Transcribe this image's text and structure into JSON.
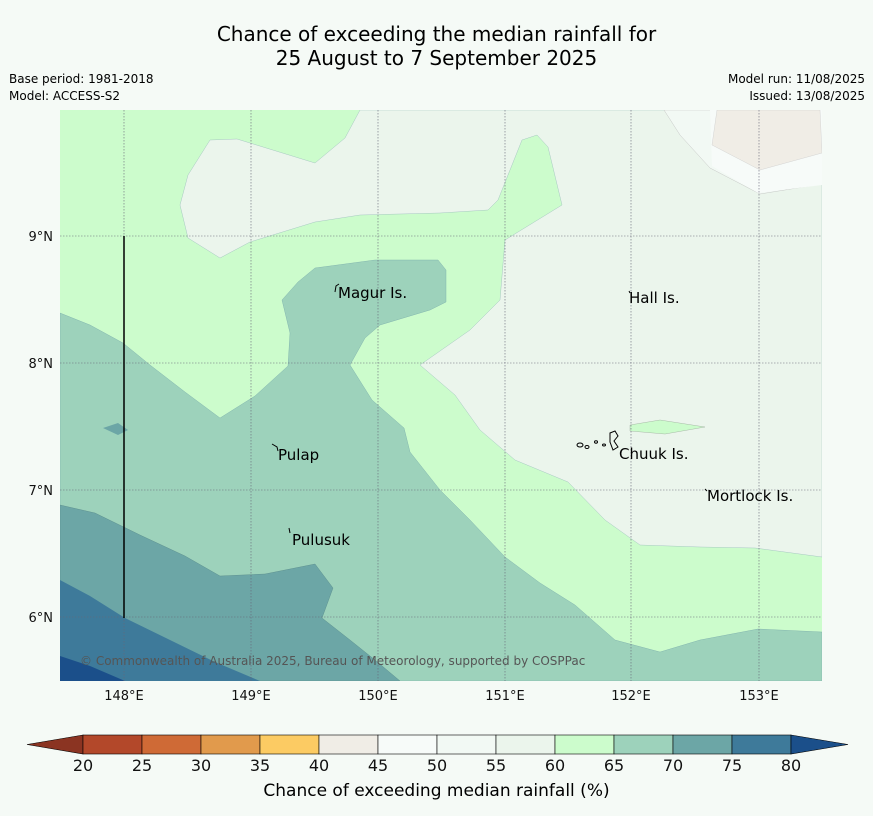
{
  "title": {
    "line1": "Chance of exceeding the median rainfall for",
    "line2": "25 August to 7 September 2025"
  },
  "meta_left": {
    "base_period": "Base period: 1981-2018",
    "model": "Model: ACCESS-S2"
  },
  "meta_right": {
    "model_run": "Model run: 11/08/2025",
    "issued": "Issued: 13/08/2025"
  },
  "map": {
    "lon_ticks": [
      "148°E",
      "149°E",
      "150°E",
      "151°E",
      "152°E",
      "153°E"
    ],
    "lat_ticks": [
      "9°N",
      "8°N",
      "7°N",
      "6°N"
    ],
    "places": [
      "Magur Is.",
      "Hall Is.",
      "Pulap",
      "Chuuk Is.",
      "Mortlock Is.",
      "Pulusuk"
    ],
    "copyright": "© Commonwealth of Australia 2025, Bureau of Meteorology, supported by COSPPac"
  },
  "colorbar": {
    "title": "Chance of exceeding median rainfall (%)",
    "labels": [
      "20",
      "25",
      "30",
      "35",
      "40",
      "45",
      "50",
      "55",
      "60",
      "65",
      "70",
      "75",
      "80"
    ],
    "colors": [
      "#b3482a",
      "#cf6a36",
      "#e19a4c",
      "#fccb63",
      "#f0ede6",
      "#f7fbf9",
      "#f2f9f4",
      "#ebf5ec",
      "#ccfccc",
      "#9dd2bb",
      "#6ca6a6",
      "#3e7a9a"
    ],
    "under_color": "#8b3422",
    "over_color": "#1b4f8a"
  }
}
